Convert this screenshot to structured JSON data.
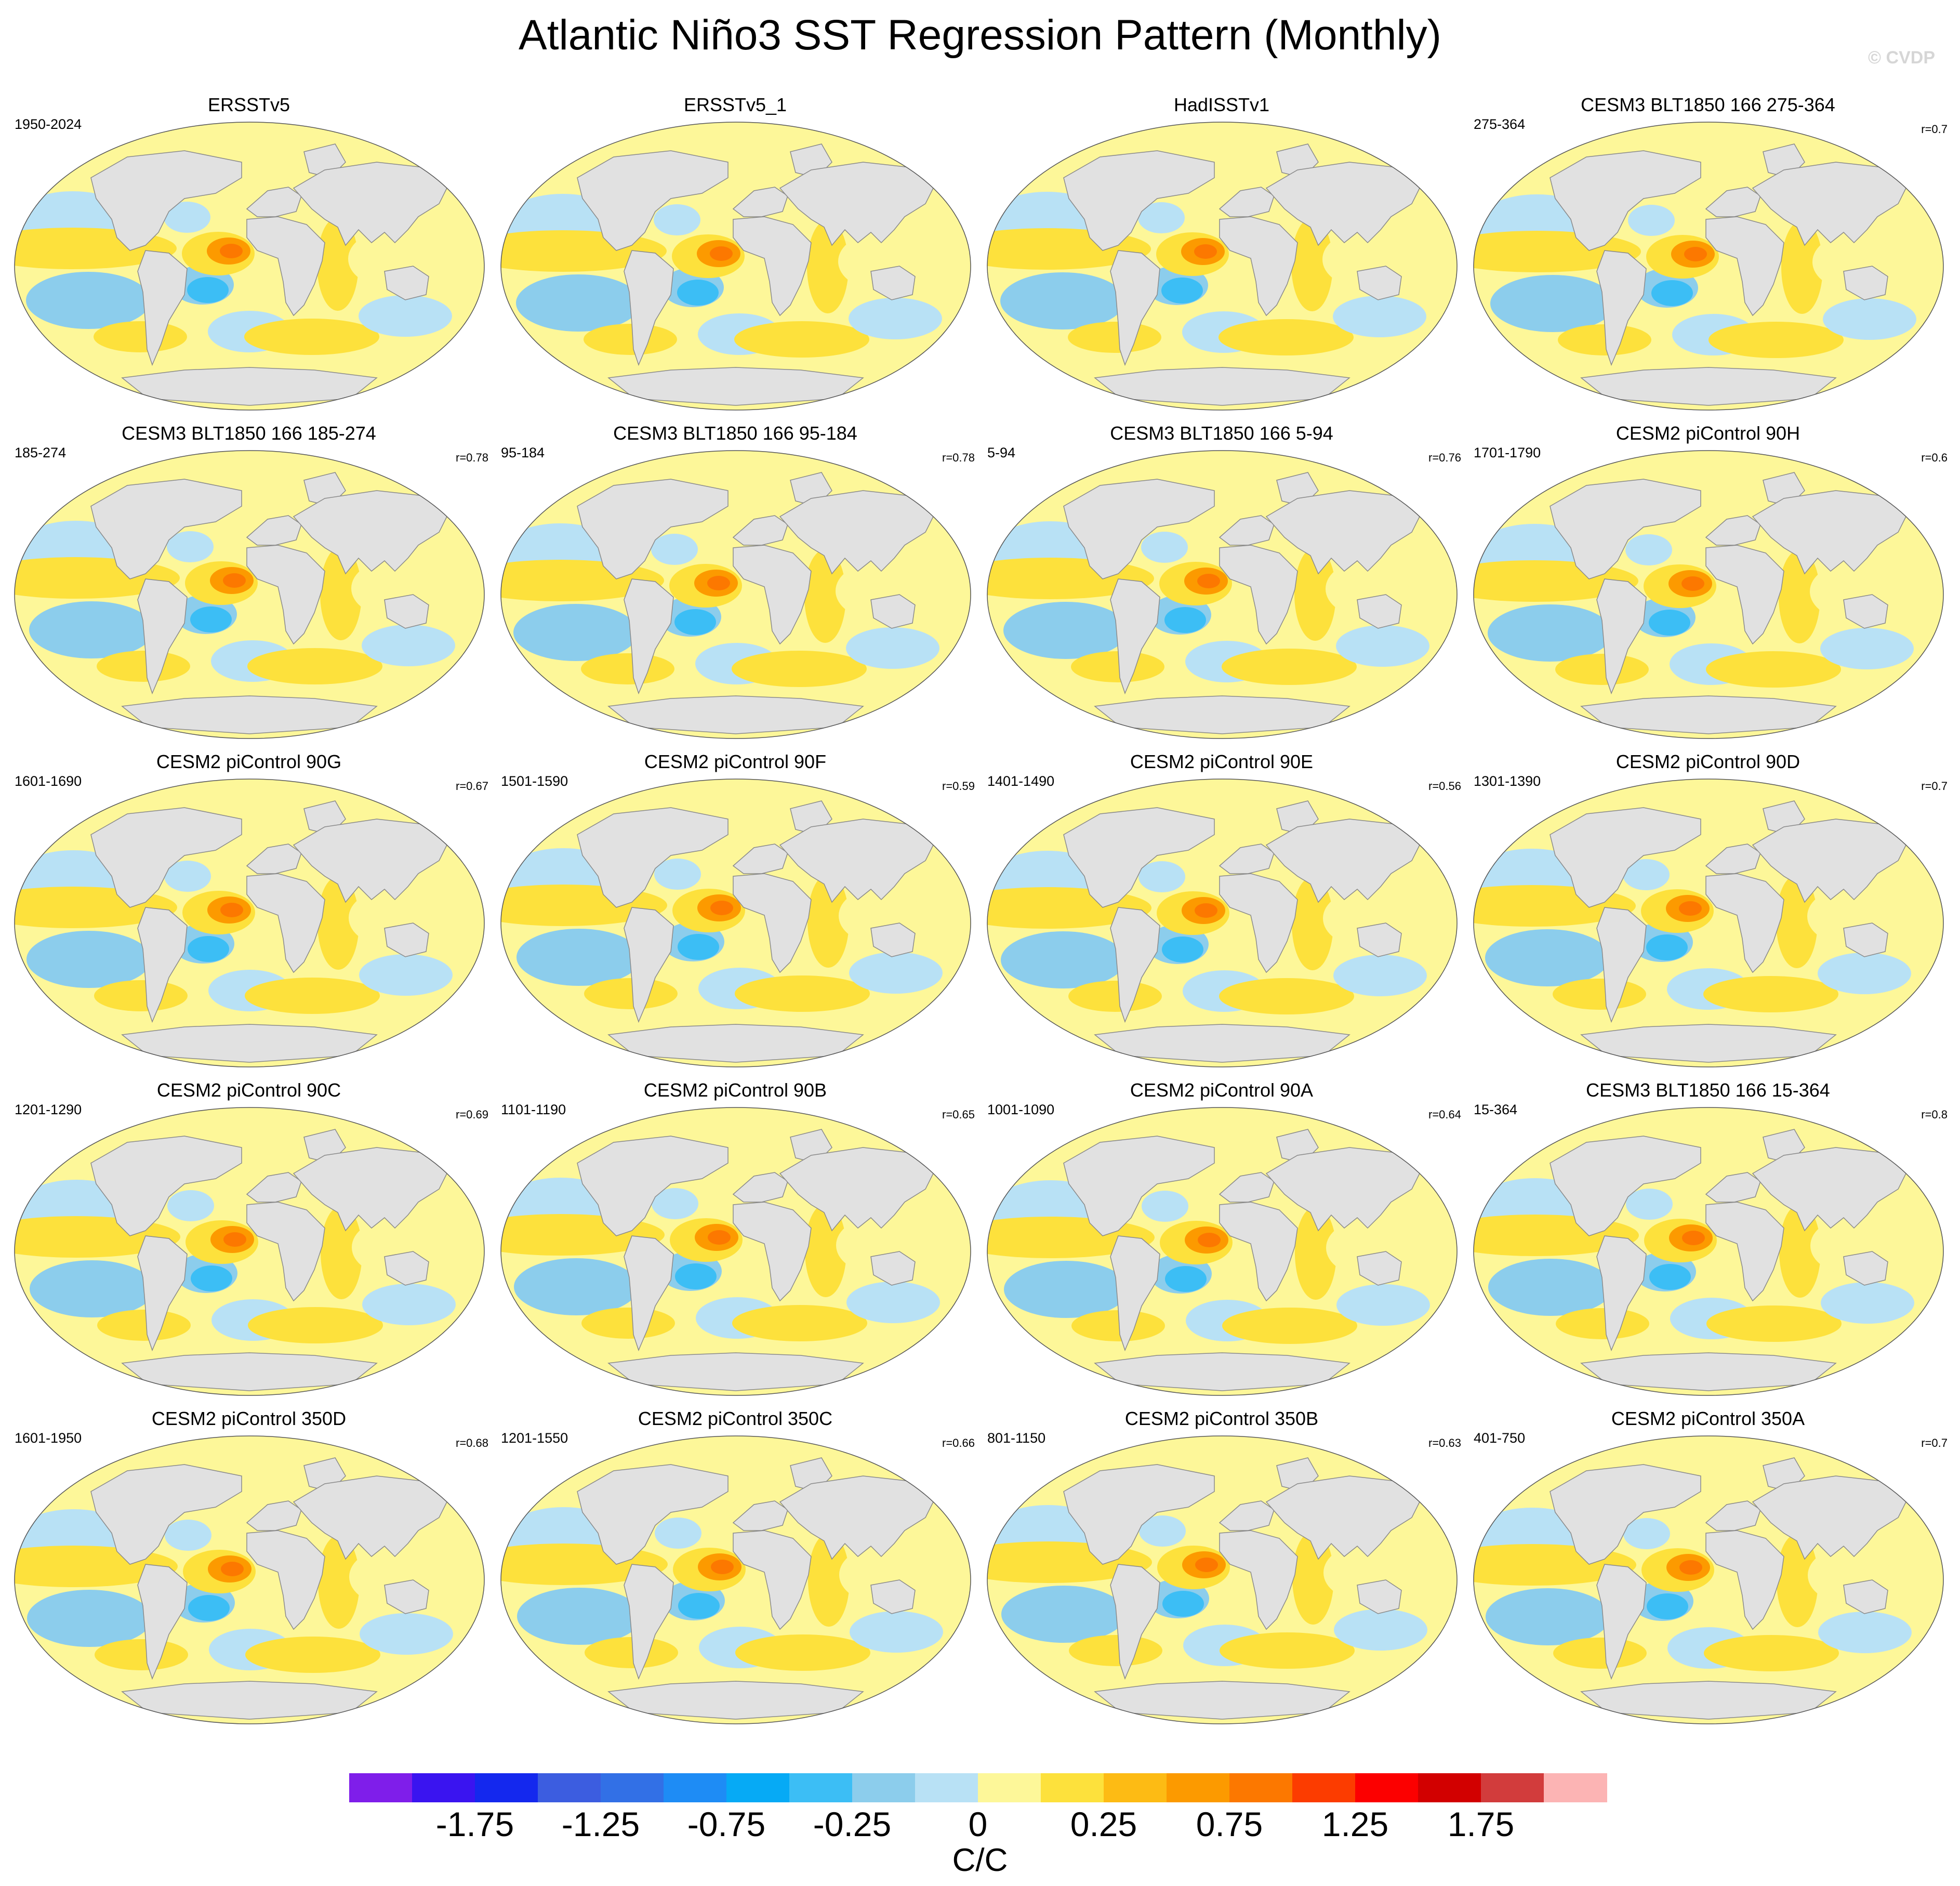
{
  "title": "Atlantic Niño3 SST Regression Pattern (Monthly)",
  "watermark": "© CVDP",
  "panels": [
    {
      "title": "ERSSTv5",
      "period": "1950-2024",
      "r": ""
    },
    {
      "title": "ERSSTv5_1",
      "period": "",
      "r": ""
    },
    {
      "title": "HadISSTv1",
      "period": "",
      "r": ""
    },
    {
      "title": "CESM3 BLT1850 166 275-364",
      "period": "275-364",
      "r": "r=0.7"
    },
    {
      "title": "CESM3 BLT1850 166 185-274",
      "period": "185-274",
      "r": "r=0.78"
    },
    {
      "title": "CESM3 BLT1850 166 95-184",
      "period": "95-184",
      "r": "r=0.78"
    },
    {
      "title": "CESM3 BLT1850 166 5-94",
      "period": "5-94",
      "r": "r=0.76"
    },
    {
      "title": "CESM2 piControl 90H",
      "period": "1701-1790",
      "r": "r=0.6"
    },
    {
      "title": "CESM2 piControl 90G",
      "period": "1601-1690",
      "r": "r=0.67"
    },
    {
      "title": "CESM2 piControl 90F",
      "period": "1501-1590",
      "r": "r=0.59"
    },
    {
      "title": "CESM2 piControl 90E",
      "period": "1401-1490",
      "r": "r=0.56"
    },
    {
      "title": "CESM2 piControl 90D",
      "period": "1301-1390",
      "r": "r=0.7"
    },
    {
      "title": "CESM2 piControl 90C",
      "period": "1201-1290",
      "r": "r=0.69"
    },
    {
      "title": "CESM2 piControl 90B",
      "period": "1101-1190",
      "r": "r=0.65"
    },
    {
      "title": "CESM2 piControl 90A",
      "period": "1001-1090",
      "r": "r=0.64"
    },
    {
      "title": "CESM3 BLT1850 166 15-364",
      "period": "15-364",
      "r": "r=0.8"
    },
    {
      "title": "CESM2 piControl 350D",
      "period": "1601-1950",
      "r": "r=0.68"
    },
    {
      "title": "CESM2 piControl 350C",
      "period": "1201-1550",
      "r": "r=0.66"
    },
    {
      "title": "CESM2 piControl 350B",
      "period": "801-1150",
      "r": "r=0.63"
    },
    {
      "title": "CESM2 piControl 350A",
      "period": "401-750",
      "r": "r=0.7"
    }
  ],
  "colorbar": {
    "units": "C/C",
    "colors": [
      "#7f1eea",
      "#3a14f0",
      "#1428ee",
      "#3c5de0",
      "#3270e6",
      "#1e8cf5",
      "#06aaf5",
      "#3cbef5",
      "#8ccdec",
      "#b8e1f5",
      "#fdf799",
      "#fde13c",
      "#fdbb14",
      "#fc9a00",
      "#fc7800",
      "#fc3c00",
      "#fc0000",
      "#d20000",
      "#d23c3c",
      "#fcb4b4"
    ],
    "tick_labels": [
      "-1.75",
      "-1.25",
      "-0.75",
      "-0.25",
      "0",
      "0.25",
      "0.75",
      "1.25",
      "1.75"
    ]
  },
  "colors": {
    "land": "#e1e1e1",
    "coast": "#8a8a8a",
    "ocean_base": "#fdf799"
  }
}
